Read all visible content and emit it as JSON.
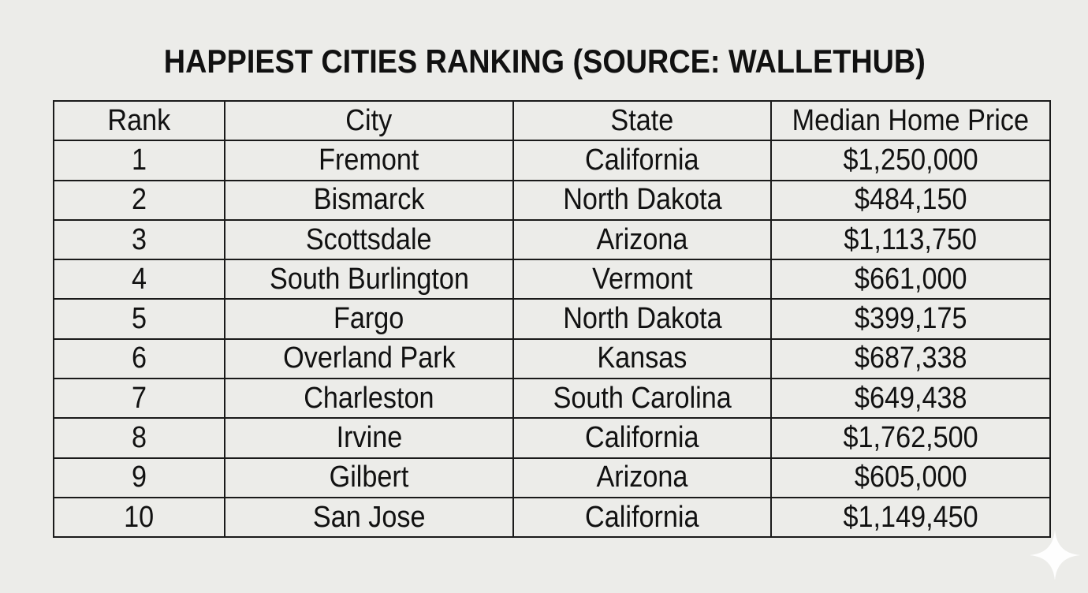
{
  "title": "HAPPIEST CITIES RANKING (SOURCE: WALLETHUB)",
  "table": {
    "headers": [
      "Rank",
      "City",
      "State",
      "Median Home Price"
    ],
    "rows": [
      [
        "1",
        "Fremont",
        "California",
        "$1,250,000"
      ],
      [
        "2",
        "Bismarck",
        "North Dakota",
        "$484,150"
      ],
      [
        "3",
        "Scottsdale",
        "Arizona",
        "$1,113,750"
      ],
      [
        "4",
        "South Burlington",
        "Vermont",
        "$661,000"
      ],
      [
        "5",
        "Fargo",
        "North Dakota",
        "$399,175"
      ],
      [
        "6",
        "Overland Park",
        "Kansas",
        "$687,338"
      ],
      [
        "7",
        "Charleston",
        "South Carolina",
        "$649,438"
      ],
      [
        "8",
        "Irvine",
        "California",
        "$1,762,500"
      ],
      [
        "9",
        "Gilbert",
        "Arizona",
        "$605,000"
      ],
      [
        "10",
        "San Jose",
        "California",
        "$1,149,450"
      ]
    ]
  },
  "colors": {
    "background": "#ecece9",
    "text": "#111111",
    "border": "#1a1a1a",
    "sparkle": "#ffffff"
  },
  "icons": {
    "watermark": "sparkle-icon"
  }
}
